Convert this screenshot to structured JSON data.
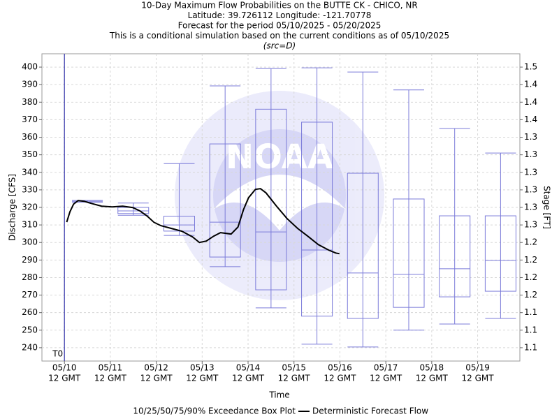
{
  "chart_data": {
    "type": "box",
    "title_lines": [
      "10-Day Maximum Flow Probabilities on the BUTTE CK - CHICO, NR",
      "Latitude: 39.726112 Longitude: -121.70778",
      "Forecast for the period 05/10/2025 - 05/20/2025",
      "This is a conditional simulation based on the current conditions as of 05/10/2025"
    ],
    "source": "(src=D)",
    "x_label": "Time",
    "y_label": "Discharge [CFS]",
    "y2_label": "Stage [FT]",
    "t0_label": "T0",
    "t0_x": 0,
    "xlim": [
      -0.49,
      9.92
    ],
    "xticks": [
      {
        "value": 0,
        "label": "05/10",
        "sublabel": "12 GMT"
      },
      {
        "value": 1,
        "label": "05/11",
        "sublabel": "12 GMT"
      },
      {
        "value": 2,
        "label": "05/12",
        "sublabel": "12 GMT"
      },
      {
        "value": 3,
        "label": "05/13",
        "sublabel": "12 GMT"
      },
      {
        "value": 4,
        "label": "05/14",
        "sublabel": "12 GMT"
      },
      {
        "value": 5,
        "label": "05/15",
        "sublabel": "12 GMT"
      },
      {
        "value": 6,
        "label": "05/16",
        "sublabel": "12 GMT"
      },
      {
        "value": 7,
        "label": "05/17",
        "sublabel": "12 GMT"
      },
      {
        "value": 8,
        "label": "05/18",
        "sublabel": "12 GMT"
      },
      {
        "value": 9,
        "label": "05/19",
        "sublabel": "12 GMT"
      }
    ],
    "ylim": [
      232.4,
      407.6
    ],
    "yticks": [
      240,
      250,
      260,
      270,
      280,
      290,
      300,
      310,
      320,
      330,
      340,
      350,
      360,
      370,
      380,
      390,
      400
    ],
    "stage_ticks": [
      {
        "at": 240,
        "label": "1.1"
      },
      {
        "at": 250,
        "label": "1.1"
      },
      {
        "at": 260,
        "label": "1.1"
      },
      {
        "at": 270,
        "label": "1.2"
      },
      {
        "at": 280,
        "label": "1.2"
      },
      {
        "at": 290,
        "label": "1.2"
      },
      {
        "at": 300,
        "label": "1.2"
      },
      {
        "at": 310,
        "label": "1.3"
      },
      {
        "at": 320,
        "label": "1.3"
      },
      {
        "at": 330,
        "label": "1.3"
      },
      {
        "at": 340,
        "label": "1.3"
      },
      {
        "at": 350,
        "label": "1.3"
      },
      {
        "at": 360,
        "label": "1.3"
      },
      {
        "at": 370,
        "label": "1.4"
      },
      {
        "at": 380,
        "label": "1.4"
      },
      {
        "at": 390,
        "label": "1.4"
      },
      {
        "at": 400,
        "label": "1.5"
      }
    ],
    "grid": true,
    "boxes": {
      "name": "10/25/50/75/90% Exceedance Box Plot",
      "color": "#7b7bd9",
      "x": [
        0.5,
        1.5,
        2.5,
        3.5,
        4.5,
        5.5,
        6.5,
        7.5,
        8.5,
        9.5
      ],
      "p10": [
        323,
        315.5,
        304,
        286.2,
        262.7,
        242,
        240.4,
        250,
        253.5,
        256.7
      ],
      "p25": [
        323.5,
        316.5,
        306.5,
        291.7,
        273,
        258,
        256.7,
        263,
        269,
        272.2
      ],
      "p50": [
        323.5,
        318,
        310,
        311.6,
        306,
        295.7,
        282.6,
        281.8,
        285,
        289.8
      ],
      "p75": [
        323.5,
        320,
        315,
        356.2,
        376,
        368.6,
        339.5,
        324.8,
        315.2,
        315.2
      ],
      "p90": [
        324,
        322.5,
        345,
        389.3,
        399.2,
        399.6,
        397.2,
        387,
        365,
        351
      ]
    },
    "line": {
      "name": "Deterministic Forecast Flow",
      "color": "#000000",
      "x": [
        0.05,
        0.12,
        0.2,
        0.3,
        0.43,
        0.58,
        0.81,
        1.04,
        1.27,
        1.49,
        1.65,
        1.8,
        1.95,
        2.1,
        2.33,
        2.56,
        2.79,
        2.94,
        3.09,
        3.25,
        3.4,
        3.63,
        3.78,
        3.9,
        4.01,
        4.16,
        4.27,
        4.39,
        4.62,
        4.85,
        5.08,
        5.3,
        5.53,
        5.76,
        5.91,
        5.99
      ],
      "values": [
        311.6,
        317.5,
        321.9,
        323.9,
        323.5,
        322.3,
        320.7,
        320.3,
        320.7,
        319.9,
        317.9,
        315.1,
        311.5,
        309.6,
        308.0,
        306.4,
        303.2,
        300.0,
        300.8,
        303.6,
        305.6,
        304.8,
        308.8,
        318.7,
        325.5,
        330.3,
        330.7,
        328.3,
        320.7,
        313.6,
        308.0,
        303.6,
        298.8,
        295.6,
        294.0,
        293.6
      ]
    }
  }
}
